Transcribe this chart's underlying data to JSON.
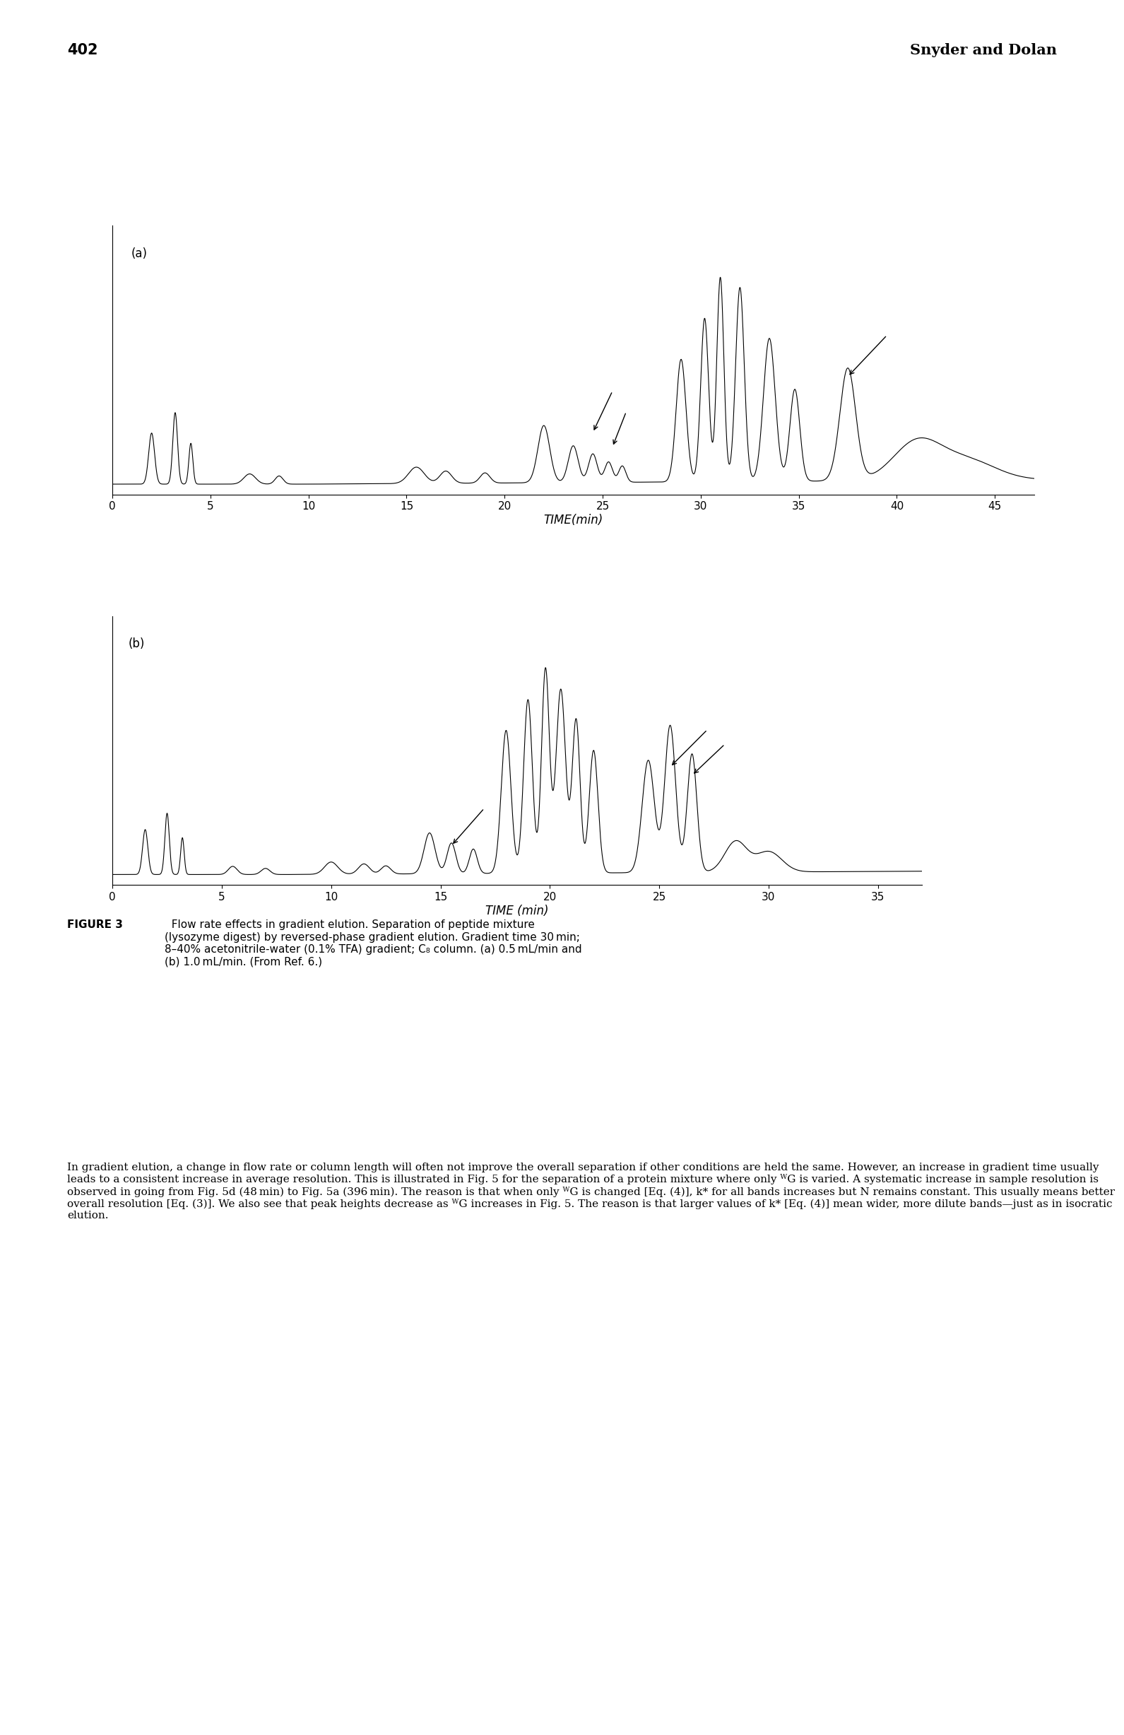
{
  "page_number": "402",
  "header_right": "Snyder and Dolan",
  "panel_a_label": "(a)",
  "panel_b_label": "(b)",
  "xlabel_a": "TIME(min)",
  "xlabel_b": "TIME (min)",
  "xticks_a": [
    0,
    5,
    10,
    15,
    20,
    25,
    30,
    35,
    40,
    45
  ],
  "xlim_a": [
    0,
    47
  ],
  "xticks_b": [
    0,
    5,
    10,
    15,
    20,
    25,
    30,
    35
  ],
  "xlim_b": [
    0,
    37
  ],
  "caption_bold": "FIGURE 3",
  "caption_text": "  Flow rate effects in gradient elution. Separation of peptide mixture (lysozyme digest) by reversed-phase gradient elution. Gradient time 30 min; 8–40% acetonitrile-water (0.1% TFA) gradient; C₈ column. (a) 0.5 mL/min and (b) 1.0 mL/min. (From Ref. 6.)",
  "body_text": "In gradient elution, a change in flow rate or column length will often not improve the overall separation if other conditions are held the same. However, an increase in gradient time usually leads to a consistent increase in average resolution. This is illustrated in Fig. 5 for the separation of a protein mixture where only ᵂG is varied. A systematic increase in sample resolution is observed in going from Fig. 5d (48 min) to Fig. 5a (396 min). The reason is that when only ᵂG is changed [Eq. (4)], k* for all bands increases but N remains constant. This usually means better overall resolution [Eq. (3)]. We also see that peak heights decrease as ᵂG increases in Fig. 5. The reason is that larger values of k* [Eq. (4)] mean wider, more dilute bands—just as in isocratic elution.",
  "background_color": "#ffffff",
  "line_color": "#000000"
}
